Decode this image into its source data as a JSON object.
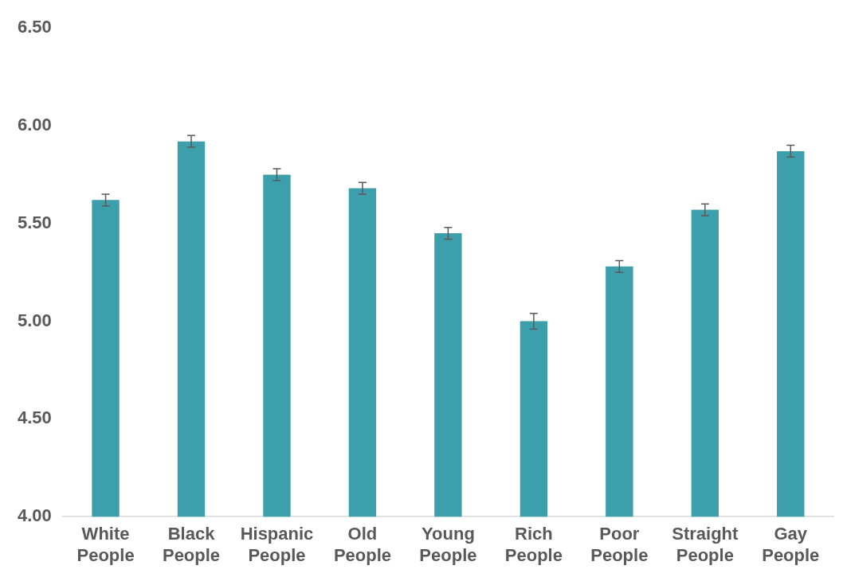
{
  "chart_data": {
    "type": "bar",
    "categories": [
      "White People",
      "Black People",
      "Hispanic People",
      "Old People",
      "Young People",
      "Rich People",
      "Poor People",
      "Straight People",
      "Gay People"
    ],
    "values": [
      5.62,
      5.92,
      5.75,
      5.68,
      5.45,
      5.0,
      5.28,
      5.57,
      5.87
    ],
    "errors": [
      0.03,
      0.03,
      0.03,
      0.03,
      0.03,
      0.04,
      0.03,
      0.03,
      0.03
    ],
    "color": "#3e9fac",
    "ylim": [
      4.0,
      6.5
    ],
    "yticks": [
      {
        "value": 4.0,
        "label": "4.00"
      },
      {
        "value": 4.5,
        "label": "4.50"
      },
      {
        "value": 5.0,
        "label": "5.00"
      },
      {
        "value": 5.5,
        "label": "5.50"
      },
      {
        "value": 6.0,
        "label": "6.00"
      },
      {
        "value": 6.5,
        "label": "6.50"
      }
    ],
    "grid": false,
    "legend": false
  }
}
